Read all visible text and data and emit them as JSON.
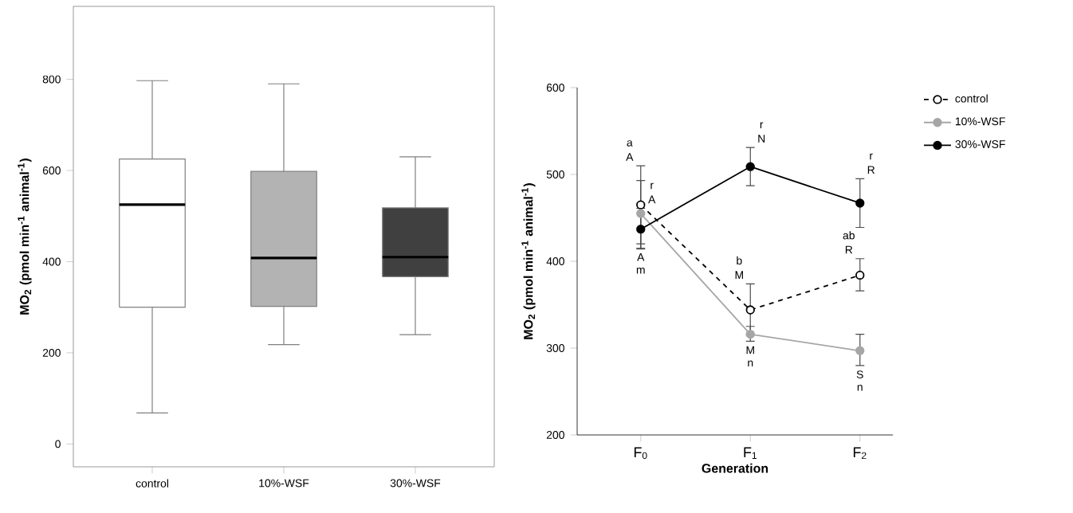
{
  "chart_data": [
    {
      "type": "box",
      "categories": [
        "control",
        "10%-WSF",
        "30%-WSF"
      ],
      "ylabel": "MO$_{2}$ (pmol min$^{-1}$ animal$^{-1}$)",
      "ylim": [
        -50,
        960
      ],
      "yticks": [
        0,
        200,
        400,
        600,
        800
      ],
      "colors": [
        "#ffffff",
        "#b3b3b3",
        "#404040"
      ],
      "boxes": [
        {
          "low": 68,
          "q1": 300,
          "median": 525,
          "q3": 625,
          "high": 797
        },
        {
          "low": 218,
          "q1": 302,
          "median": 408,
          "q3": 598,
          "high": 790
        },
        {
          "low": 240,
          "q1": 367,
          "median": 410,
          "q3": 518,
          "high": 630
        }
      ]
    },
    {
      "type": "line",
      "categories": [
        "F$_{0}$",
        "F$_{1}$",
        "F$_{2}$"
      ],
      "xlabel": "Generation",
      "ylabel": "MO$_{2}$ (pmol min$^{-1}$ animal$^{-1}$)",
      "ylim": [
        200,
        600
      ],
      "yticks": [
        200,
        300,
        400,
        500,
        600
      ],
      "legend": "top right",
      "marker": "circle",
      "series": [
        {
          "name": "control",
          "color": "#000000",
          "line_style": "dashed",
          "values": [
            465,
            344,
            384
          ],
          "errors": [
            [
              420,
              510
            ],
            [
              315,
              374
            ],
            [
              366,
              403
            ]
          ]
        },
        {
          "name": "10%-WSF",
          "color": "#a6a6a6",
          "line_style": "solid",
          "values": [
            455,
            316,
            297
          ],
          "errors": [
            [
              415,
              493
            ],
            [
              308,
              325
            ],
            [
              280,
              316
            ]
          ]
        },
        {
          "name": "30%-WSF",
          "color": "#000000",
          "line_style": "solid",
          "values": [
            437,
            509,
            467
          ],
          "errors": [
            [
              414,
              461
            ],
            [
              487,
              531
            ],
            [
              439,
              495
            ]
          ]
        }
      ],
      "annotations": [
        "a",
        "A",
        "r",
        "A",
        "A",
        "m",
        "r",
        "N",
        "b",
        "M",
        "M",
        "n",
        "r",
        "R",
        "ab",
        "R",
        "S",
        "n"
      ]
    }
  ]
}
